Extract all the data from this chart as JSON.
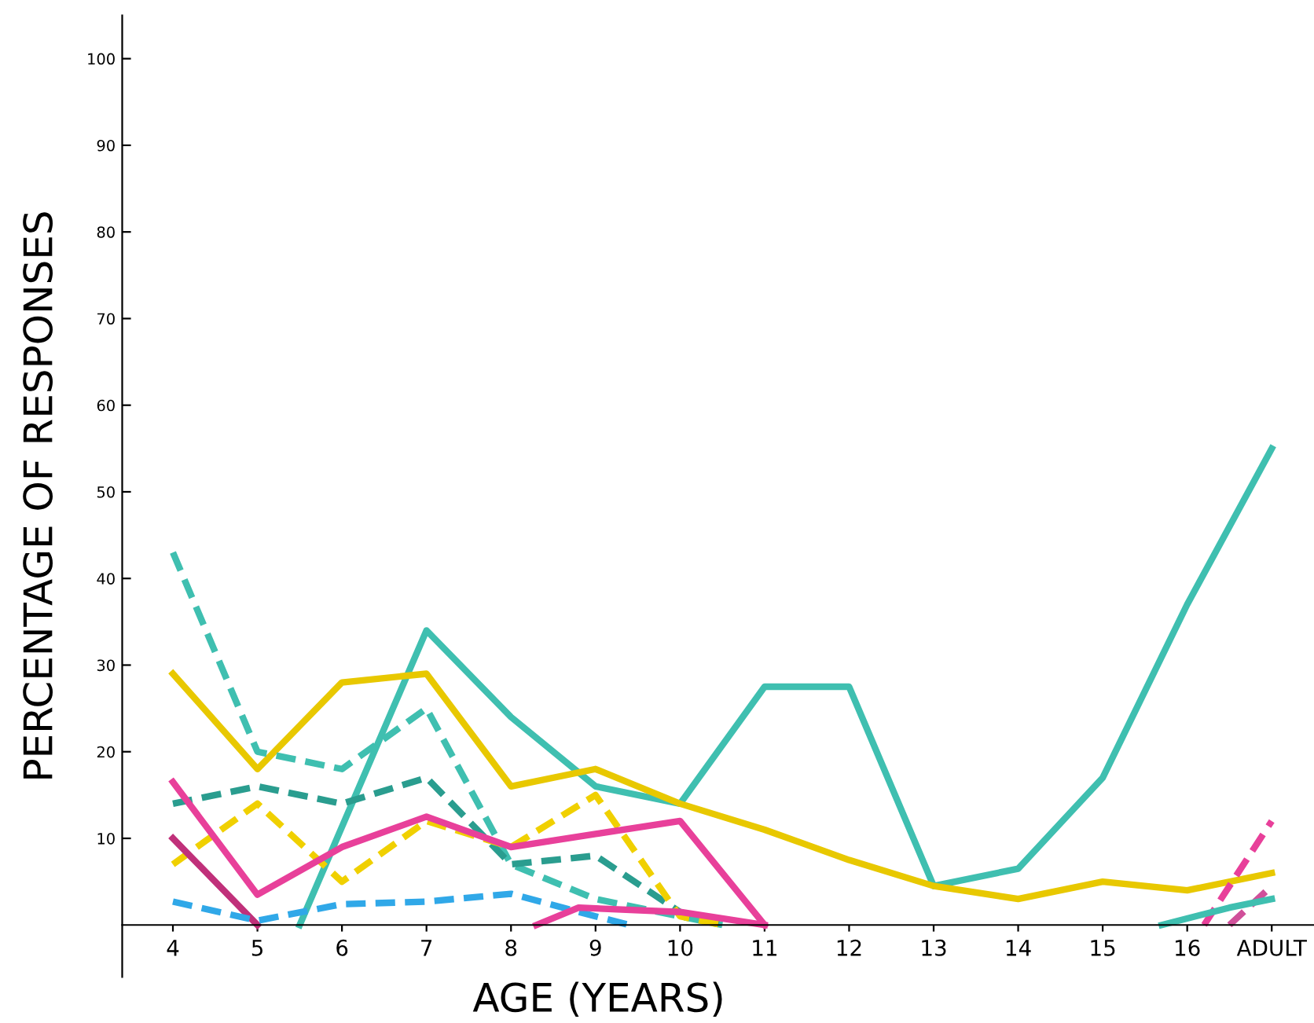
{
  "chart_data": {
    "type": "line",
    "xlabel": "AGE (YEARS)",
    "ylabel": "PERCENTAGE OF RESPONSES",
    "xlim": [
      3.4,
      17.5
    ],
    "ylim": [
      -6,
      105
    ],
    "xticks": [
      4,
      5,
      6,
      7,
      8,
      9,
      10,
      11,
      12,
      13,
      14,
      15,
      16,
      {
        "value": 17,
        "label": "ADULT"
      }
    ],
    "yticks": [
      10,
      20,
      30,
      40,
      50,
      60,
      70,
      80,
      90,
      100
    ],
    "grid": false,
    "legend": false,
    "marker": "none",
    "series": [
      {
        "color": "#3fbfb0",
        "line_style": "solid",
        "x": [
          5.5,
          7,
          8,
          9,
          10,
          11,
          12,
          13,
          14,
          15,
          16,
          17
        ],
        "values": [
          0,
          34,
          24,
          16,
          14,
          27.5,
          27.5,
          4.5,
          6.5,
          17,
          37,
          55
        ]
      },
      {
        "color": "#e8c800",
        "line_style": "solid",
        "x": [
          4,
          5,
          6,
          7,
          8,
          9,
          10,
          11,
          12,
          13,
          14,
          15,
          16,
          17
        ],
        "values": [
          29,
          18,
          28,
          29,
          16,
          18,
          14,
          11,
          7.5,
          4.5,
          3,
          5,
          4,
          6
        ]
      },
      {
        "color": "#3fbfb0",
        "line_style": "dashed",
        "x": [
          4,
          5,
          6,
          7,
          8,
          9,
          10,
          10.5
        ],
        "values": [
          43,
          20,
          18,
          25,
          7,
          3,
          1,
          0
        ]
      },
      {
        "color": "#2a9d8f",
        "line_style": "dashed",
        "x": [
          4,
          5,
          6,
          7,
          8,
          9,
          10,
          10.5
        ],
        "values": [
          14,
          16,
          14,
          17,
          7,
          8,
          1.5,
          0
        ]
      },
      {
        "color": "#f0d000",
        "line_style": "dashed",
        "x": [
          4,
          5,
          6,
          7,
          8,
          9,
          10,
          10.5
        ],
        "values": [
          7,
          14,
          5,
          12,
          9,
          15,
          1,
          0
        ]
      },
      {
        "color": "#e8409a",
        "line_style": "solid",
        "x": [
          4,
          5,
          6,
          7,
          8,
          9,
          10,
          11
        ],
        "values": [
          16.5,
          3.5,
          9,
          12.5,
          9,
          10.5,
          12,
          0
        ]
      },
      {
        "color": "#c0307a",
        "line_style": "solid",
        "x": [
          4,
          5
        ],
        "values": [
          10,
          0
        ]
      },
      {
        "color": "#30a8e8",
        "line_style": "dashed",
        "x": [
          4,
          5,
          6,
          7,
          8,
          9,
          9.4
        ],
        "values": [
          2.7,
          0.5,
          2.4,
          2.7,
          3.6,
          1,
          0
        ]
      },
      {
        "color": "#e8409a",
        "line_style": "solid",
        "x": [
          8.3,
          8.8,
          10,
          11
        ],
        "values": [
          0,
          2,
          1.5,
          0
        ]
      },
      {
        "color": "#e8409a",
        "line_style": "dashed",
        "x": [
          16.2,
          17
        ],
        "values": [
          0,
          12
        ]
      },
      {
        "color": "#d0509a",
        "line_style": "dashed",
        "x": [
          16.5,
          17
        ],
        "values": [
          0,
          4.5
        ]
      },
      {
        "color": "#3fbfb0",
        "line_style": "solid",
        "x": [
          15.7,
          16.5,
          17
        ],
        "values": [
          0,
          2,
          3
        ]
      }
    ]
  }
}
